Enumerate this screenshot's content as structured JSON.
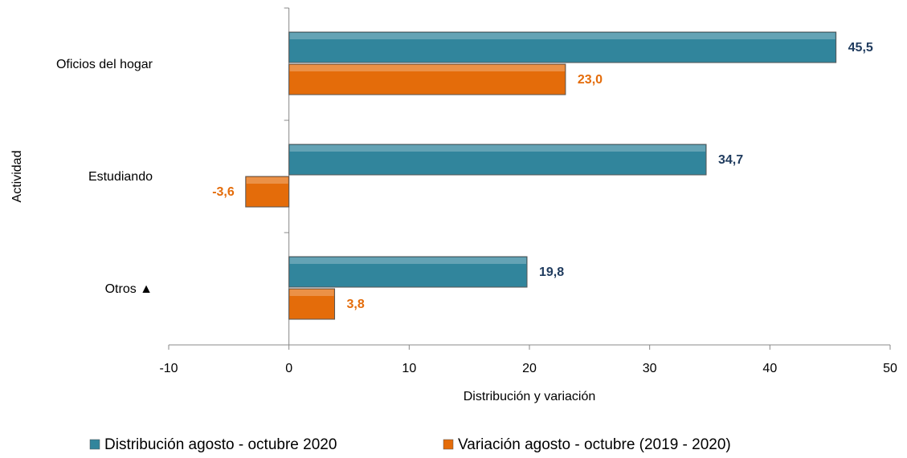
{
  "chart_data": {
    "type": "hbar",
    "y_label": "Actividad",
    "x_label": "Distribución y variación",
    "categories": [
      "Oficios del hogar",
      "Estudiando",
      "Otros ▲"
    ],
    "series": [
      {
        "name": "Distribución agosto - octubre 2020",
        "color": "#31859c",
        "label_color": "#1f3b5e",
        "values": [
          45.5,
          34.7,
          19.8
        ],
        "value_labels": [
          "45,5",
          "34,7",
          "19,8"
        ]
      },
      {
        "name": "Variación agosto - octubre (2019 - 2020)",
        "color": "#e46c0a",
        "label_color": "#e46c0a",
        "values": [
          23.0,
          -3.6,
          3.8
        ],
        "value_labels": [
          "23,0",
          "-3,6",
          "3,8"
        ]
      }
    ],
    "xlim": [
      -10,
      50
    ],
    "xticks": [
      -10,
      0,
      10,
      20,
      30,
      40,
      50
    ]
  }
}
